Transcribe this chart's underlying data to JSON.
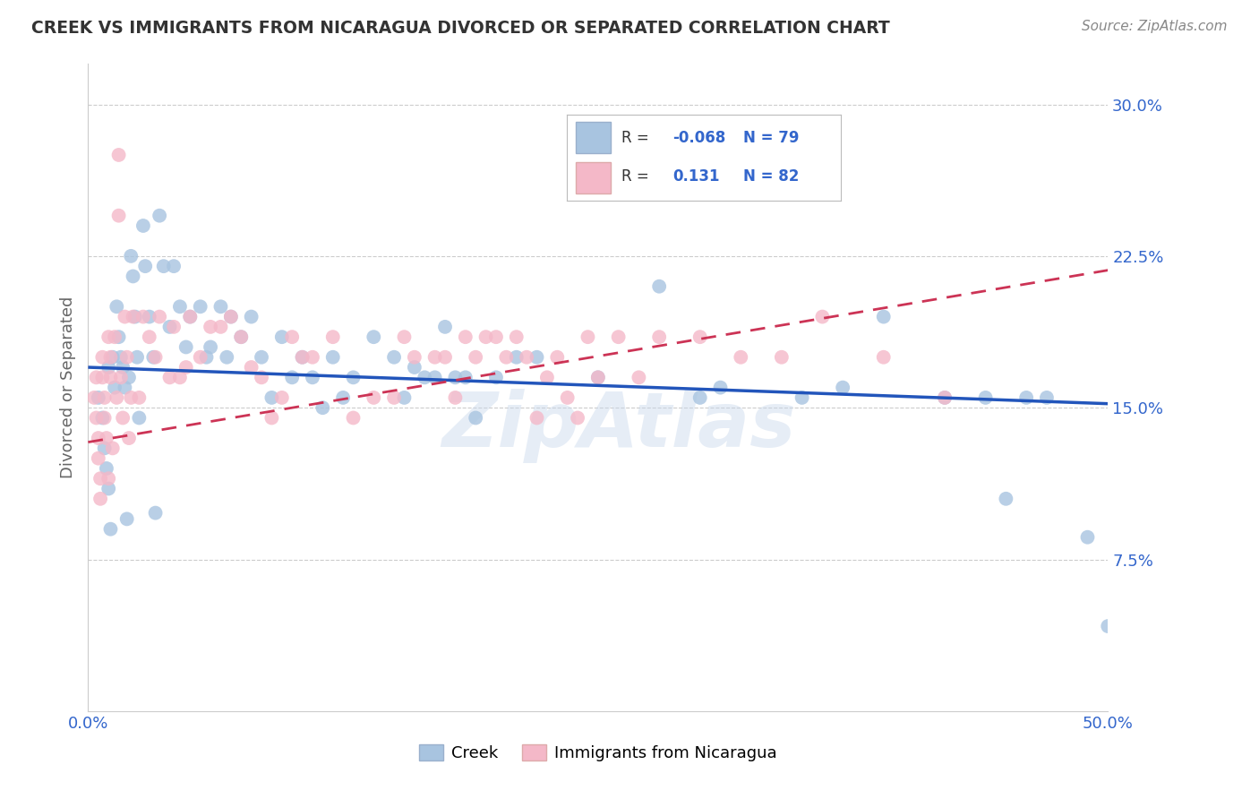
{
  "title": "CREEK VS IMMIGRANTS FROM NICARAGUA DIVORCED OR SEPARATED CORRELATION CHART",
  "source_text": "Source: ZipAtlas.com",
  "ylabel": "Divorced or Separated",
  "xlim_min": 0.0,
  "xlim_max": 0.5,
  "ylim_min": 0.0,
  "ylim_max": 0.32,
  "xtick_positions": [
    0.0,
    0.1,
    0.2,
    0.3,
    0.4,
    0.5
  ],
  "xticklabels": [
    "0.0%",
    "",
    "",
    "",
    "",
    "50.0%"
  ],
  "ytick_positions": [
    0.075,
    0.15,
    0.225,
    0.3
  ],
  "yticklabels": [
    "7.5%",
    "15.0%",
    "22.5%",
    "30.0%"
  ],
  "creek_color": "#a8c4e0",
  "nicaragua_color": "#f4b8c8",
  "creek_line_color": "#2255bb",
  "nicaragua_line_color": "#cc3355",
  "legend_R_creek": "-0.068",
  "legend_R_nicaragua": "0.131",
  "legend_N_creek": "79",
  "legend_N_nicaragua": "82",
  "watermark": "ZipAtlas",
  "creek_x": [
    0.005,
    0.007,
    0.008,
    0.009,
    0.01,
    0.01,
    0.011,
    0.012,
    0.013,
    0.014,
    0.015,
    0.016,
    0.017,
    0.018,
    0.019,
    0.02,
    0.021,
    0.022,
    0.023,
    0.024,
    0.025,
    0.027,
    0.028,
    0.03,
    0.032,
    0.033,
    0.035,
    0.037,
    0.04,
    0.042,
    0.045,
    0.048,
    0.05,
    0.055,
    0.058,
    0.06,
    0.065,
    0.068,
    0.07,
    0.075,
    0.08,
    0.085,
    0.09,
    0.095,
    0.1,
    0.105,
    0.11,
    0.115,
    0.12,
    0.125,
    0.13,
    0.14,
    0.15,
    0.155,
    0.16,
    0.165,
    0.17,
    0.175,
    0.18,
    0.185,
    0.19,
    0.2,
    0.21,
    0.22,
    0.25,
    0.265,
    0.28,
    0.3,
    0.31,
    0.35,
    0.37,
    0.39,
    0.42,
    0.44,
    0.45,
    0.46,
    0.47,
    0.49,
    0.5
  ],
  "creek_y": [
    0.155,
    0.145,
    0.13,
    0.12,
    0.11,
    0.17,
    0.09,
    0.175,
    0.16,
    0.2,
    0.185,
    0.175,
    0.17,
    0.16,
    0.095,
    0.165,
    0.225,
    0.215,
    0.195,
    0.175,
    0.145,
    0.24,
    0.22,
    0.195,
    0.175,
    0.098,
    0.245,
    0.22,
    0.19,
    0.22,
    0.2,
    0.18,
    0.195,
    0.2,
    0.175,
    0.18,
    0.2,
    0.175,
    0.195,
    0.185,
    0.195,
    0.175,
    0.155,
    0.185,
    0.165,
    0.175,
    0.165,
    0.15,
    0.175,
    0.155,
    0.165,
    0.185,
    0.175,
    0.155,
    0.17,
    0.165,
    0.165,
    0.19,
    0.165,
    0.165,
    0.145,
    0.165,
    0.175,
    0.175,
    0.165,
    0.27,
    0.21,
    0.155,
    0.16,
    0.155,
    0.16,
    0.195,
    0.155,
    0.155,
    0.105,
    0.155,
    0.155,
    0.086,
    0.042
  ],
  "nicaragua_x": [
    0.003,
    0.004,
    0.004,
    0.005,
    0.005,
    0.006,
    0.006,
    0.007,
    0.007,
    0.008,
    0.008,
    0.009,
    0.01,
    0.01,
    0.011,
    0.011,
    0.012,
    0.013,
    0.014,
    0.015,
    0.015,
    0.016,
    0.017,
    0.018,
    0.019,
    0.02,
    0.021,
    0.022,
    0.025,
    0.027,
    0.03,
    0.033,
    0.035,
    0.04,
    0.042,
    0.045,
    0.048,
    0.05,
    0.055,
    0.06,
    0.065,
    0.07,
    0.075,
    0.08,
    0.085,
    0.09,
    0.095,
    0.1,
    0.105,
    0.11,
    0.12,
    0.13,
    0.14,
    0.15,
    0.155,
    0.16,
    0.17,
    0.175,
    0.18,
    0.185,
    0.19,
    0.195,
    0.2,
    0.205,
    0.21,
    0.215,
    0.22,
    0.225,
    0.23,
    0.235,
    0.24,
    0.245,
    0.25,
    0.26,
    0.27,
    0.28,
    0.3,
    0.32,
    0.34,
    0.36,
    0.39,
    0.42
  ],
  "nicaragua_y": [
    0.155,
    0.145,
    0.165,
    0.135,
    0.125,
    0.115,
    0.105,
    0.175,
    0.165,
    0.155,
    0.145,
    0.135,
    0.115,
    0.185,
    0.175,
    0.165,
    0.13,
    0.185,
    0.155,
    0.275,
    0.245,
    0.165,
    0.145,
    0.195,
    0.175,
    0.135,
    0.155,
    0.195,
    0.155,
    0.195,
    0.185,
    0.175,
    0.195,
    0.165,
    0.19,
    0.165,
    0.17,
    0.195,
    0.175,
    0.19,
    0.19,
    0.195,
    0.185,
    0.17,
    0.165,
    0.145,
    0.155,
    0.185,
    0.175,
    0.175,
    0.185,
    0.145,
    0.155,
    0.155,
    0.185,
    0.175,
    0.175,
    0.175,
    0.155,
    0.185,
    0.175,
    0.185,
    0.185,
    0.175,
    0.185,
    0.175,
    0.145,
    0.165,
    0.175,
    0.155,
    0.145,
    0.185,
    0.165,
    0.185,
    0.165,
    0.185,
    0.185,
    0.175,
    0.175,
    0.195,
    0.175,
    0.155
  ]
}
